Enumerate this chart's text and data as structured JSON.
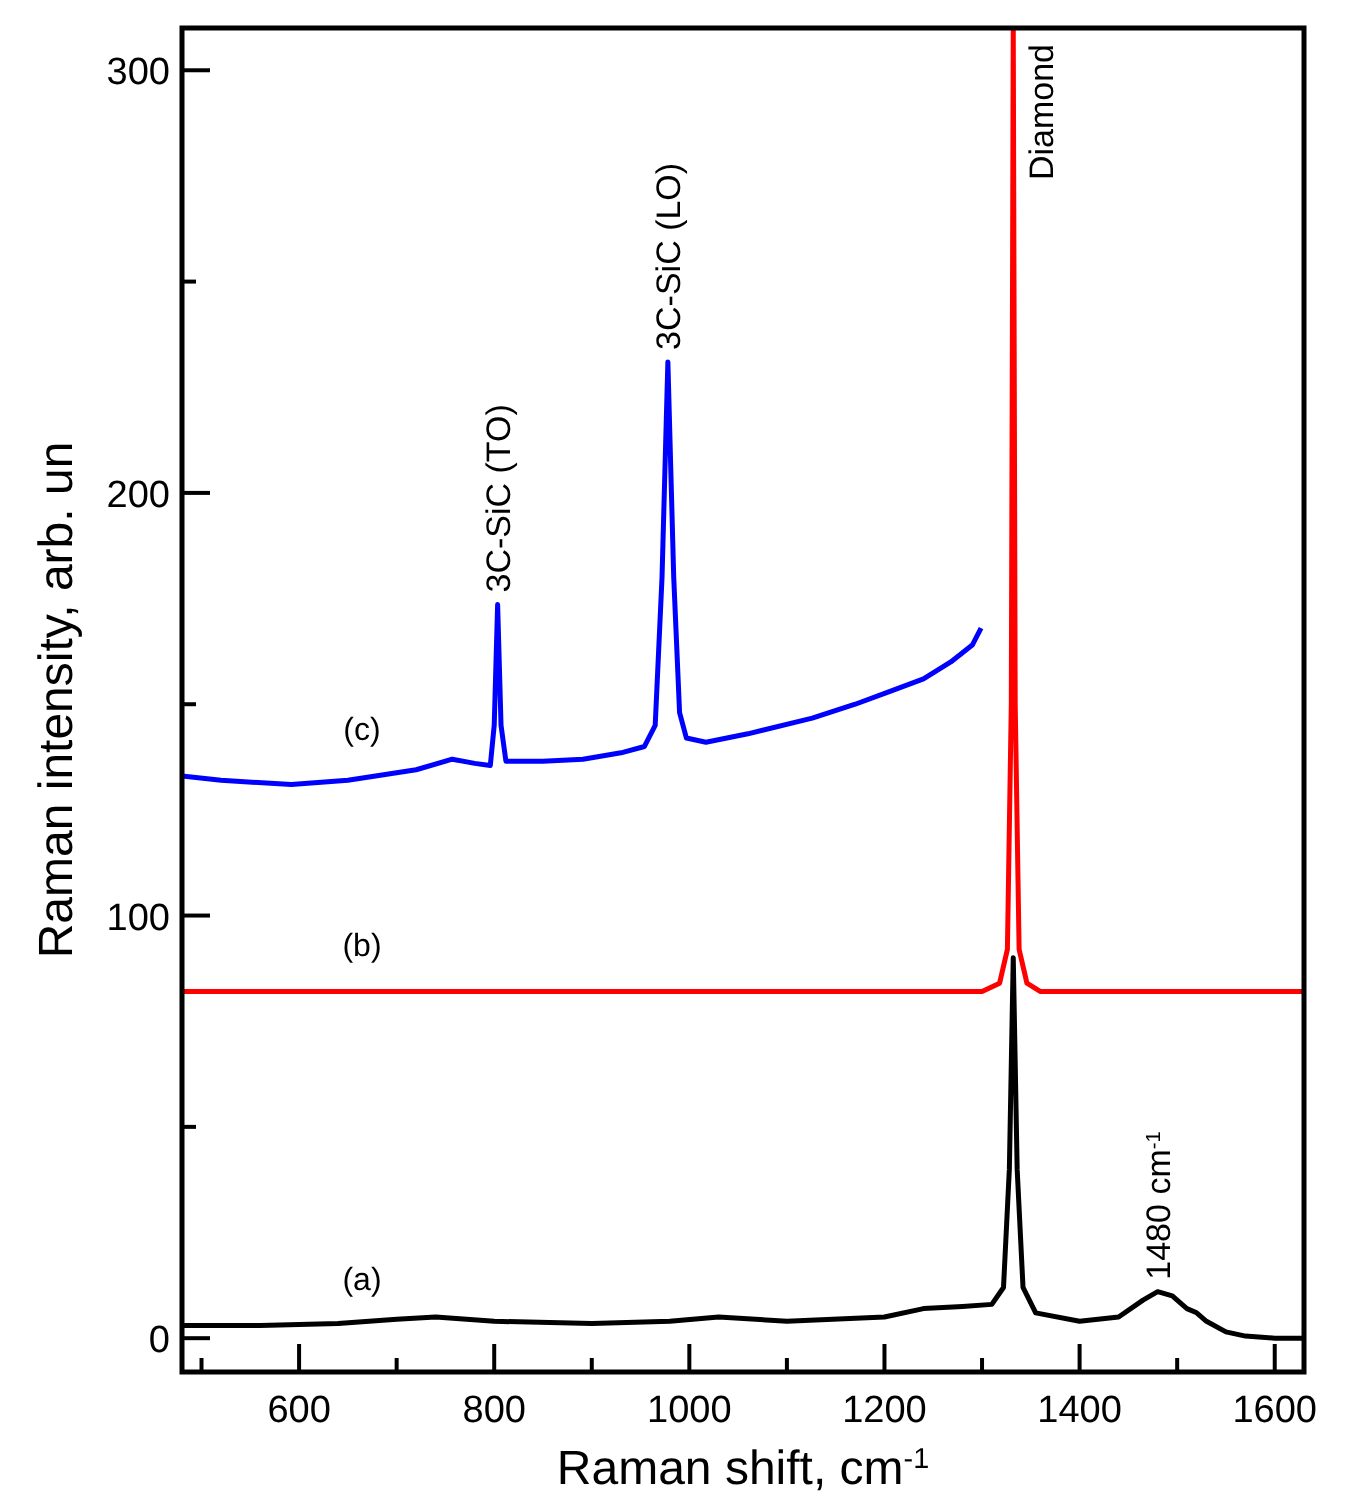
{
  "chart_data": {
    "type": "line",
    "xlabel": "Raman shift, cm$^{-1}$",
    "ylabel": "Raman intensity, arb. un",
    "xlim": [
      480,
      1630
    ],
    "ylim": [
      -8,
      310
    ],
    "xticks": [
      {
        "value": 500,
        "label": null
      },
      600,
      {
        "value": 700,
        "label": null
      },
      800,
      {
        "value": 900,
        "label": null
      },
      1000,
      {
        "value": 1100,
        "label": null
      },
      1200,
      {
        "value": 1300,
        "label": null
      },
      1400,
      {
        "value": 1500,
        "label": null
      },
      1600
    ],
    "yticks": [
      0,
      {
        "value": 50,
        "label": null
      },
      100,
      {
        "value": 150,
        "label": null
      },
      200,
      {
        "value": 250,
        "label": null
      },
      300
    ],
    "grid": false,
    "marker": "none",
    "line_style": "solid",
    "series": [
      {
        "name": "(a)",
        "color": "#000000",
        "x": [
          480,
          560,
          640,
          700,
          740,
          800,
          900,
          980,
          1030,
          1100,
          1200,
          1240,
          1280,
          1310,
          1322,
          1328,
          1332,
          1336,
          1342,
          1355,
          1400,
          1440,
          1465,
          1480,
          1495,
          1510,
          1520,
          1530,
          1550,
          1570,
          1600,
          1630
        ],
        "values": [
          3,
          3,
          3.5,
          4.5,
          5,
          4,
          3.5,
          4,
          5,
          4,
          5,
          7,
          7.5,
          8,
          12,
          40,
          90,
          40,
          12,
          6,
          4,
          5,
          9,
          11,
          10,
          7,
          6,
          4,
          1.5,
          0.5,
          0,
          0
        ]
      },
      {
        "name": "(b)",
        "color": "#ff0000",
        "x": [
          480,
          800,
          1200,
          1300,
          1318,
          1326,
          1330,
          1332,
          1334,
          1338,
          1346,
          1360,
          1400,
          1630
        ],
        "values": [
          82,
          82,
          82,
          82,
          84,
          92,
          150,
          310,
          150,
          92,
          84,
          82,
          82,
          82
        ]
      },
      {
        "name": "(c)",
        "color": "#0000ff",
        "x": [
          480,
          520,
          592,
          650,
          720,
          757,
          780,
          796,
          800,
          803.5,
          807,
          812,
          850,
          891,
          930,
          954,
          965,
          972,
          978,
          984,
          990,
          997,
          1017,
          1060,
          1126,
          1170,
          1205,
          1240,
          1268,
          1290,
          1299
        ],
        "values": [
          133,
          132,
          131,
          132,
          134.5,
          137,
          136,
          135.5,
          145,
          173.6,
          145,
          136.5,
          136.5,
          137,
          138.5,
          140,
          145,
          180,
          231,
          180,
          148,
          142,
          141,
          143,
          146.7,
          150,
          153,
          156,
          160,
          164,
          168
        ]
      }
    ],
    "annotations": [
      {
        "text": "3C-SiC (TO)",
        "x": 803.5,
        "y": 173.6
      },
      {
        "text": "3C-SiC (LO)",
        "x": 978,
        "y": 231
      },
      {
        "text": "Diamond",
        "x": 1332,
        "y": 310
      },
      {
        "text": "1480 cm$^{-1}$",
        "x": 1480,
        "y": 11
      }
    ]
  }
}
